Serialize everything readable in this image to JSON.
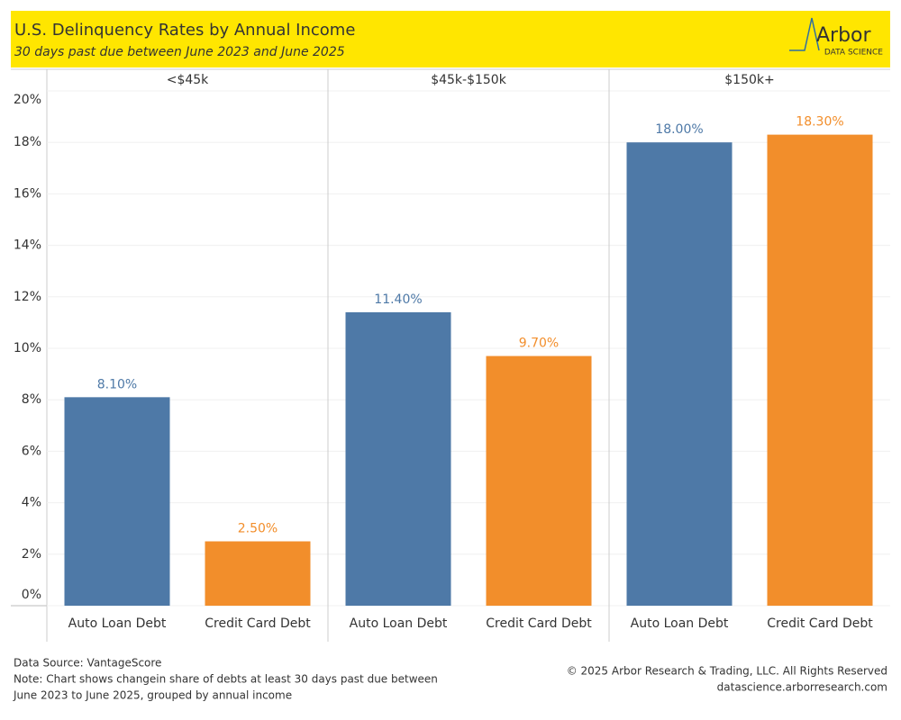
{
  "chart_data": {
    "type": "bar",
    "title": "U.S. Delinquency Rates by Annual Income",
    "subtitle": "30 days past due between June 2023 and June 2025",
    "logo": {
      "name": "Arbor",
      "tagline": "DATA SCIENCE"
    },
    "categories": [
      "<$45k",
      "$45k-$150k",
      "$150k+"
    ],
    "series": [
      {
        "name": "Auto Loan Debt",
        "color": "#4e79a7",
        "values": [
          8.1,
          11.4,
          18.0
        ],
        "value_labels": [
          "8.10%",
          "11.40%",
          "18.00%"
        ]
      },
      {
        "name": "Credit Card Debt",
        "color": "#f28e2b",
        "values": [
          2.5,
          9.7,
          18.3
        ],
        "value_labels": [
          "2.50%",
          "9.70%",
          "18.30%"
        ]
      }
    ],
    "ylim": [
      0,
      20
    ],
    "yticks": [
      {
        "value": 0,
        "label": "0%"
      },
      {
        "value": 2,
        "label": "2%"
      },
      {
        "value": 4,
        "label": "4%"
      },
      {
        "value": 6,
        "label": "6%"
      },
      {
        "value": 8,
        "label": "8%"
      },
      {
        "value": 10,
        "label": "10%"
      },
      {
        "value": 12,
        "label": "12%"
      },
      {
        "value": 14,
        "label": "14%"
      },
      {
        "value": 16,
        "label": "16%"
      },
      {
        "value": 18,
        "label": "18%"
      },
      {
        "value": 20,
        "label": "20%"
      }
    ],
    "grid": true,
    "source": "Data Source: VantageScore",
    "note": [
      "Note: Chart shows changein share of debts at least 30 days past due between",
      "June 2023 to June 2025, grouped by annual income"
    ],
    "copyright": "© 2025 Arbor Research & Trading, LLC. All Rights Reserved",
    "website": "datascience.arborresearch.com"
  }
}
